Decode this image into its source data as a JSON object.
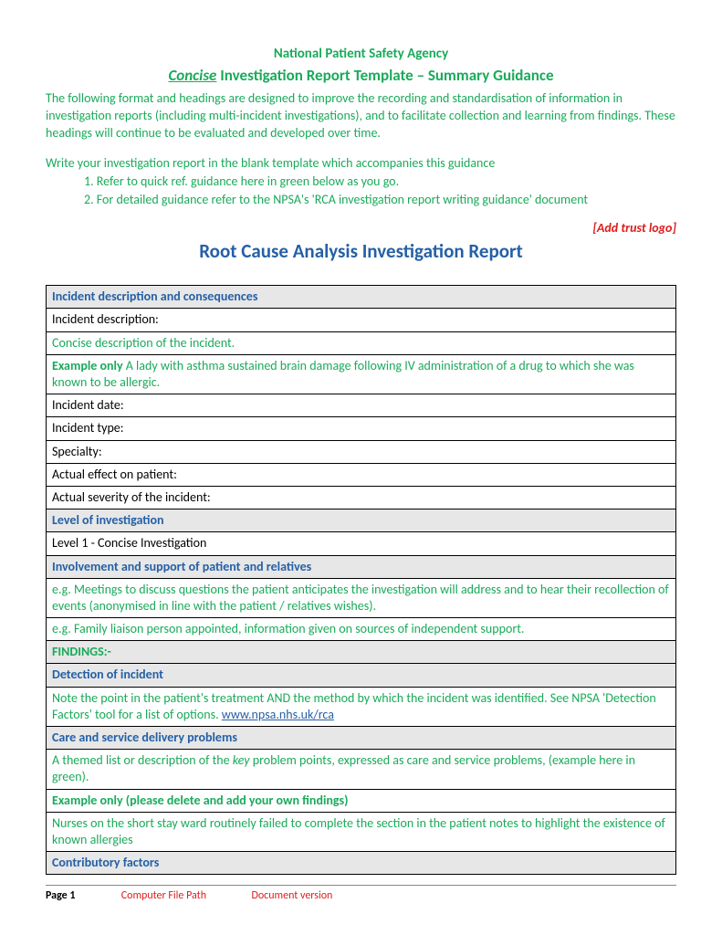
{
  "colors": {
    "green": "#1aaa5a",
    "blue_heading": "#2560a6",
    "red": "#e01b1b",
    "section_bg": "#e7e7e7",
    "border": "#000000",
    "page_bg": "#ffffff"
  },
  "fonts": {
    "body_family": "Calibri, Arial, sans-serif",
    "body_size_pt": 11,
    "title_size_pt": 13,
    "rca_title_size_pt": 16
  },
  "header": {
    "agency": "National Patient Safety Agency",
    "title_emph": "Concise",
    "title_rest": " Investigation Report Template – Summary Guidance"
  },
  "intro": "The following format and headings are designed to improve the recording and standardisation of information in investigation reports (including multi-incident investigations), and to facilitate collection and learning from findings. These headings will continue to be evaluated and developed over time.",
  "write_line": "Write your investigation report in the blank template which accompanies this guidance",
  "ol": {
    "item1_num": "1.   ",
    "item1": "Refer to quick ref. guidance here in green below as you go.",
    "item2_num": "2.   ",
    "item2": "For detailed guidance refer to the NPSA's 'RCA investigation report writing guidance' document"
  },
  "trust_logo": "[Add trust logo]",
  "rca_title": "Root Cause Analysis Investigation Report",
  "sections": {
    "incident_desc_header": "Incident description and consequences",
    "incident_description_label": "Incident description:",
    "concise_desc": "Concise description of the incident.",
    "example_only_prefix": "Example only ",
    "example_text": "A lady with asthma sustained brain damage following IV administration of a drug to which she was known to be allergic.",
    "incident_date": "Incident date:",
    "incident_type": "Incident type:",
    "specialty": "Specialty:",
    "actual_effect": "Actual effect on patient:",
    "actual_severity": "Actual severity of the incident:",
    "level_header": "Level of investigation",
    "level_value": " Level  1 - Concise Investigation",
    "involvement_header": "Involvement and support of patient and relatives",
    "involvement_eg1": "e.g. Meetings to discuss questions the patient anticipates the investigation will address and to hear their recollection of events (anonymised in line with the patient / relatives wishes).",
    "involvement_eg2": "e.g. Family liaison person appointed, information given on sources of independent support.",
    "findings": "FINDINGS:-",
    "detection_header": "Detection of incident",
    "detection_note_pre": "Note the point in the patient's treatment AND the method by which the incident was identified. See NPSA 'Detection Factors' tool for a list of options. ",
    "detection_link": "www.npsa.nhs.uk/rca",
    "care_header": "Care and service delivery problems",
    "care_desc_pre": "A themed list or description of the ",
    "care_desc_key": "key",
    "care_desc_post": " problem points, expressed as care and service problems, (example here in green).",
    "care_example_bold": "Example only (please delete and add your own findings)",
    "nurses_text": "Nurses on the short stay ward routinely failed to complete the section in the patient notes to highlight the existence of known allergies",
    "contrib_header": "Contributory factors"
  },
  "footer": {
    "page": "Page 1",
    "cfp": "Computer File Path",
    "dv": "Document version"
  }
}
